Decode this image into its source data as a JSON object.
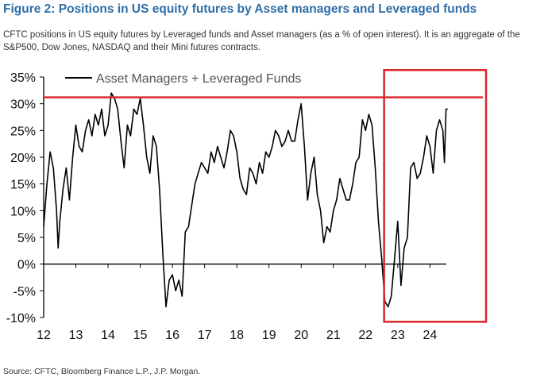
{
  "figure": {
    "title": "Figure 2: Positions in US equity futures by Asset managers and Leveraged funds",
    "subtitle": "CFTC positions in US equity futures by Leveraged funds and Asset managers (as a % of open interest). It is an aggregate of the S&P500, Dow Jones, NASDAQ and their Mini futures contracts.",
    "source": "Source: CFTC, Bloomberg Finance L.P., J.P. Morgan."
  },
  "chart_data": {
    "type": "line",
    "title": "",
    "xlabel": "",
    "ylabel": "",
    "x_ticks": [
      "12",
      "13",
      "14",
      "15",
      "16",
      "17",
      "18",
      "19",
      "20",
      "21",
      "22",
      "23",
      "24"
    ],
    "y_ticks": [
      "35%",
      "30%",
      "25%",
      "20%",
      "15%",
      "10%",
      "5%",
      "0%",
      "-5%",
      "-10%"
    ],
    "xlim": [
      2012.0,
      2025.2
    ],
    "ylim": [
      -10,
      35
    ],
    "grid": false,
    "legend_position": "top-left",
    "series": [
      {
        "name": "Asset Managers + Leveraged Funds",
        "color": "#000000",
        "x": [
          2012.0,
          2012.1,
          2012.2,
          2012.3,
          2012.4,
          2012.45,
          2012.5,
          2012.6,
          2012.7,
          2012.8,
          2012.9,
          2013.0,
          2013.1,
          2013.2,
          2013.3,
          2013.4,
          2013.5,
          2013.6,
          2013.7,
          2013.8,
          2013.9,
          2014.0,
          2014.1,
          2014.2,
          2014.3,
          2014.4,
          2014.5,
          2014.6,
          2014.7,
          2014.8,
          2014.9,
          2015.0,
          2015.1,
          2015.2,
          2015.3,
          2015.4,
          2015.5,
          2015.6,
          2015.7,
          2015.8,
          2015.9,
          2016.0,
          2016.1,
          2016.2,
          2016.3,
          2016.4,
          2016.5,
          2016.6,
          2016.7,
          2016.8,
          2016.9,
          2017.0,
          2017.1,
          2017.2,
          2017.3,
          2017.4,
          2017.5,
          2017.6,
          2017.7,
          2017.8,
          2017.9,
          2018.0,
          2018.1,
          2018.2,
          2018.3,
          2018.4,
          2018.5,
          2018.6,
          2018.7,
          2018.8,
          2018.9,
          2019.0,
          2019.1,
          2019.2,
          2019.3,
          2019.4,
          2019.5,
          2019.6,
          2019.7,
          2019.8,
          2019.9,
          2020.0,
          2020.1,
          2020.2,
          2020.3,
          2020.4,
          2020.5,
          2020.6,
          2020.7,
          2020.8,
          2020.9,
          2021.0,
          2021.1,
          2021.2,
          2021.3,
          2021.4,
          2021.5,
          2021.6,
          2021.7,
          2021.8,
          2021.9,
          2022.0,
          2022.1,
          2022.2,
          2022.3,
          2022.4,
          2022.5,
          2022.6,
          2022.7,
          2022.8,
          2022.9,
          2023.0,
          2023.1,
          2023.2,
          2023.3,
          2023.4,
          2023.5,
          2023.6,
          2023.7,
          2023.8,
          2023.9,
          2024.0,
          2024.1,
          2024.2,
          2024.3,
          2024.4,
          2024.45,
          2024.5,
          2024.55
        ],
        "y": [
          7,
          15,
          21,
          18,
          10,
          3,
          8,
          14,
          18,
          12,
          20,
          26,
          22,
          21,
          25,
          27,
          24,
          28,
          26,
          29,
          24,
          26,
          32,
          31,
          29,
          23,
          18,
          26,
          24,
          29,
          28,
          31,
          26,
          20,
          17,
          24,
          22,
          14,
          2,
          -8,
          -3,
          -2,
          -5,
          -3,
          -6,
          6,
          7,
          11,
          15,
          17,
          19,
          18,
          17,
          21,
          19,
          22,
          20,
          18,
          21,
          25,
          24,
          21,
          16,
          14,
          13,
          18,
          17,
          15,
          19,
          17,
          21,
          20,
          22,
          25,
          24,
          22,
          23,
          25,
          23,
          23,
          27,
          30,
          22,
          12,
          17,
          20,
          13,
          10,
          4,
          7,
          6,
          10,
          12,
          16,
          14,
          12,
          12,
          15,
          19,
          20,
          27,
          25,
          28,
          26,
          18,
          8,
          1,
          -7,
          -8,
          -6,
          1,
          8,
          -4,
          3,
          5,
          18,
          19,
          16,
          17,
          20,
          24,
          22,
          17,
          25,
          27,
          25,
          19,
          29,
          29
        ]
      }
    ],
    "annotations": [
      {
        "type": "horizontal-line",
        "y": 31.2,
        "color": "#d9262c"
      },
      {
        "type": "highlight-box",
        "x_range": [
          2022.6,
          2024.75
        ],
        "y_range": [
          -10.5,
          36
        ],
        "color": "#d9262c"
      }
    ]
  }
}
